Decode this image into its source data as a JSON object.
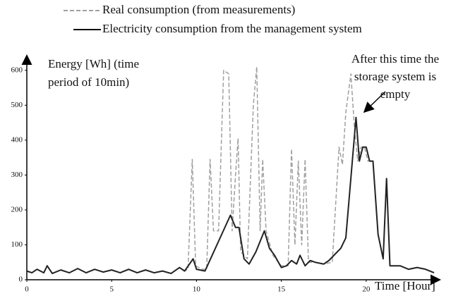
{
  "chart_data": {
    "type": "line",
    "ylabel": [
      "Energy [Wh] (time",
      "period of 10min)"
    ],
    "xlabel": "Time [Hour]",
    "annotation": [
      "After this time the",
      "storage system is",
      "empty"
    ],
    "xlim": [
      0,
      24
    ],
    "ylim": [
      0,
      640
    ],
    "xticks": [
      0,
      5,
      10,
      15,
      20
    ],
    "yticks": [
      0,
      100,
      200,
      300,
      400,
      500,
      600
    ],
    "series": [
      {
        "name": "Real consumption (from measurements)",
        "color": "#a0a0a0",
        "dashed": true,
        "x": [
          0,
          0.3,
          0.6,
          1,
          1.2,
          1.5,
          2,
          2.5,
          3,
          3.5,
          4,
          4.5,
          5,
          5.5,
          6,
          6.5,
          7,
          7.5,
          8,
          8.5,
          9,
          9.3,
          9.5,
          9.75,
          9.95,
          10.3,
          10.6,
          10.8,
          11,
          11.3,
          11.6,
          11.9,
          12.1,
          12.3,
          12.45,
          12.6,
          13,
          13.35,
          13.55,
          13.75,
          13.9,
          14.1,
          14.5,
          15,
          15.4,
          15.6,
          15.8,
          16,
          16.2,
          16.4,
          16.6,
          17,
          17.5,
          18,
          18.4,
          18.6,
          18.8,
          19.1,
          19.3,
          19.5,
          19.7,
          19.9,
          20.1,
          20.4,
          20.7,
          21,
          21.2,
          21.4,
          21.7,
          22,
          22.5,
          23,
          23.5,
          24
        ],
        "values": [
          25,
          20,
          30,
          20,
          40,
          18,
          28,
          20,
          32,
          20,
          30,
          22,
          28,
          20,
          30,
          20,
          28,
          20,
          25,
          18,
          35,
          25,
          30,
          345,
          40,
          30,
          30,
          345,
          140,
          140,
          600,
          590,
          140,
          300,
          405,
          80,
          60,
          500,
          610,
          140,
          345,
          140,
          70,
          40,
          40,
          375,
          100,
          340,
          100,
          345,
          50,
          50,
          45,
          50,
          380,
          330,
          480,
          590,
          440,
          340,
          380,
          380,
          340,
          340,
          130,
          60,
          290,
          40,
          40,
          40,
          30,
          35,
          30,
          20
        ]
      },
      {
        "name": "Electricity consumption from the management system",
        "color": "#222222",
        "dashed": false,
        "x": [
          0,
          0.3,
          0.6,
          1,
          1.2,
          1.5,
          2,
          2.5,
          3,
          3.5,
          4,
          4.5,
          5,
          5.5,
          6,
          6.5,
          7,
          7.5,
          8,
          8.5,
          9,
          9.3,
          9.8,
          10,
          10.5,
          12,
          12.3,
          12.5,
          12.8,
          13.1,
          13.5,
          14,
          14.3,
          14.6,
          15,
          15.3,
          15.6,
          15.9,
          16.1,
          16.4,
          16.7,
          17,
          17.5,
          17.8,
          18.5,
          18.8,
          19.4,
          19.6,
          19.8,
          20,
          20.2,
          20.4,
          20.7,
          21,
          21.2,
          21.4,
          21.7,
          22,
          22.5,
          23,
          23.5,
          24
        ],
        "values": [
          25,
          20,
          30,
          20,
          40,
          18,
          28,
          20,
          32,
          20,
          30,
          22,
          28,
          20,
          30,
          20,
          28,
          20,
          25,
          18,
          35,
          25,
          60,
          30,
          25,
          185,
          150,
          150,
          60,
          45,
          80,
          140,
          90,
          70,
          35,
          40,
          55,
          45,
          70,
          40,
          55,
          50,
          45,
          55,
          90,
          120,
          465,
          340,
          380,
          380,
          340,
          340,
          130,
          60,
          290,
          40,
          40,
          40,
          30,
          35,
          30,
          20
        ]
      }
    ]
  }
}
